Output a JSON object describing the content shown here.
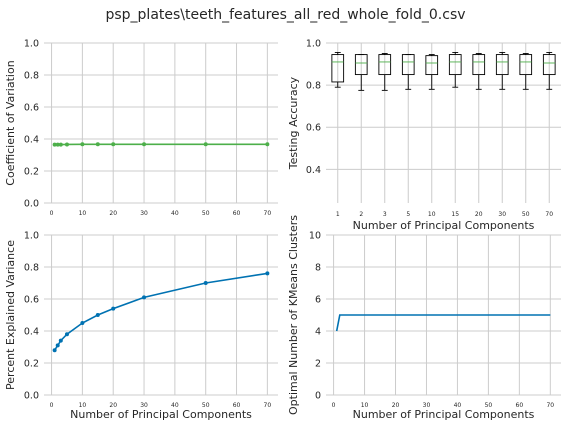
{
  "title": "psp_plates\\teeth_features_all_red_whole_fold_0.csv",
  "chart_data": [
    {
      "type": "line",
      "id": "cv",
      "ylabel": "Coefficient of Variation",
      "xlabel": "",
      "x": [
        1,
        2,
        3,
        5,
        10,
        15,
        20,
        30,
        50,
        70
      ],
      "series": [
        {
          "values": [
            0.365,
            0.365,
            0.365,
            0.366,
            0.367,
            0.367,
            0.367,
            0.367,
            0.367,
            0.367
          ]
        }
      ],
      "ylim": [
        0,
        1
      ],
      "xlim": [
        -2.45,
        73.45
      ],
      "xticks": [
        0,
        10,
        20,
        30,
        40,
        50,
        60,
        70
      ],
      "yticks": [
        0.0,
        0.2,
        0.4,
        0.6,
        0.8,
        1.0
      ],
      "color": "#4daf4a",
      "grid": true
    },
    {
      "type": "box",
      "id": "acc",
      "ylabel": "Testing Accuracy",
      "xlabel": "Number of Principal Components",
      "categories": [
        "1",
        "2",
        "3",
        "5",
        "10",
        "15",
        "20",
        "30",
        "50",
        "70"
      ],
      "boxes": [
        {
          "whislo": 0.79,
          "q1": 0.815,
          "med": 0.91,
          "q3": 0.945,
          "whishi": 0.955
        },
        {
          "whislo": 0.775,
          "q1": 0.85,
          "med": 0.905,
          "q3": 0.945,
          "whishi": 0.945
        },
        {
          "whislo": 0.775,
          "q1": 0.85,
          "med": 0.91,
          "q3": 0.945,
          "whishi": 0.95
        },
        {
          "whislo": 0.78,
          "q1": 0.85,
          "med": 0.91,
          "q3": 0.945,
          "whishi": 0.945
        },
        {
          "whislo": 0.78,
          "q1": 0.85,
          "med": 0.905,
          "q3": 0.94,
          "whishi": 0.945
        },
        {
          "whislo": 0.79,
          "q1": 0.85,
          "med": 0.91,
          "q3": 0.945,
          "whishi": 0.955
        },
        {
          "whislo": 0.78,
          "q1": 0.85,
          "med": 0.91,
          "q3": 0.945,
          "whishi": 0.95
        },
        {
          "whislo": 0.78,
          "q1": 0.85,
          "med": 0.91,
          "q3": 0.945,
          "whishi": 0.955
        },
        {
          "whislo": 0.78,
          "q1": 0.85,
          "med": 0.91,
          "q3": 0.945,
          "whishi": 0.95
        },
        {
          "whislo": 0.78,
          "q1": 0.85,
          "med": 0.905,
          "q3": 0.945,
          "whishi": 0.955
        }
      ],
      "ylim": [
        0.24,
        1.0
      ],
      "yticks": [
        0.4,
        0.6,
        0.8,
        1.0
      ],
      "color": "#000000",
      "grid": true
    },
    {
      "type": "line",
      "id": "var",
      "ylabel": "Percent Explained Variance",
      "xlabel": "Number of Principal Components",
      "x": [
        1,
        2,
        3,
        5,
        10,
        15,
        20,
        30,
        50,
        70
      ],
      "series": [
        {
          "values": [
            0.28,
            0.31,
            0.34,
            0.38,
            0.45,
            0.5,
            0.54,
            0.61,
            0.7,
            0.76
          ]
        }
      ],
      "ylim": [
        0,
        1
      ],
      "xlim": [
        -2.45,
        73.45
      ],
      "xticks": [
        0,
        10,
        20,
        30,
        40,
        50,
        60,
        70
      ],
      "yticks": [
        0.0,
        0.2,
        0.4,
        0.6,
        0.8,
        1.0
      ],
      "color": "#0072b2",
      "grid": true
    },
    {
      "type": "line",
      "id": "km",
      "ylabel": "Optimal Number of KMeans Clusters",
      "xlabel": "Number of Principal Components",
      "x": [
        1,
        2,
        3,
        4,
        5,
        10,
        20,
        30,
        40,
        50,
        60,
        70
      ],
      "series": [
        {
          "values": [
            4,
            5,
            5,
            5,
            5,
            5,
            5,
            5,
            5,
            5,
            5,
            5
          ]
        }
      ],
      "ylim": [
        0,
        10
      ],
      "xlim": [
        -2.45,
        73.45
      ],
      "xticks": [
        0,
        10,
        20,
        30,
        40,
        50,
        60,
        70
      ],
      "yticks": [
        0,
        2,
        4,
        6,
        8,
        10
      ],
      "color": "#0072b2",
      "grid": true
    }
  ]
}
